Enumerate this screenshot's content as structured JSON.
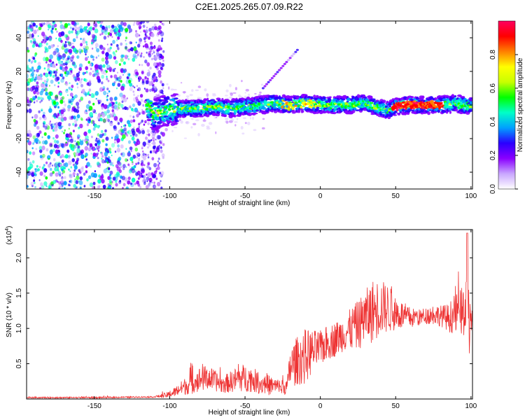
{
  "page": {
    "title": "C2E1.2025.265.07.09.R22"
  },
  "chart_data": [
    {
      "type": "heatmap",
      "title": "C2E1.2025.265.07.09.R22",
      "xlabel": "Height of straight line (km)",
      "ylabel": "Frequency (Hz)",
      "xlim": [
        -195,
        101
      ],
      "ylim": [
        -50,
        50
      ],
      "xticks": [
        -150,
        -100,
        -50,
        0,
        50,
        100
      ],
      "yticks": [
        -40,
        -20,
        0,
        20,
        40
      ],
      "colorbar": {
        "label": "Normalized spectral amplitude",
        "range": [
          0.0,
          1.0
        ],
        "ticks": [
          0.0,
          0.2,
          0.4,
          0.6,
          0.8
        ],
        "tick_labels": [
          "0.0",
          "0.2",
          "0.4",
          "0.6",
          "0.8"
        ],
        "colors": [
          "#ffffff",
          "#c9a6ff",
          "#8a00ff",
          "#2a00ff",
          "#00a0ff",
          "#00ffc8",
          "#00ff00",
          "#c8ff00",
          "#ffff00",
          "#ff8000",
          "#ff0000",
          "#ff0060"
        ]
      },
      "noise_region_km": [
        -195,
        -112
      ],
      "signal_center_hz": [
        {
          "x": -112,
          "y": -6
        },
        {
          "x": -105,
          "y": -4
        },
        {
          "x": -100,
          "y": -3
        },
        {
          "x": -90,
          "y": -2
        },
        {
          "x": -80,
          "y": -2
        },
        {
          "x": -70,
          "y": -1
        },
        {
          "x": -60,
          "y": -2
        },
        {
          "x": -50,
          "y": -1
        },
        {
          "x": -40,
          "y": 0
        },
        {
          "x": -30,
          "y": 1
        },
        {
          "x": -20,
          "y": 0
        },
        {
          "x": -10,
          "y": 1
        },
        {
          "x": 0,
          "y": 0
        },
        {
          "x": 10,
          "y": 0
        },
        {
          "x": 20,
          "y": 0
        },
        {
          "x": 30,
          "y": 1
        },
        {
          "x": 40,
          "y": -2
        },
        {
          "x": 45,
          "y": -3
        },
        {
          "x": 50,
          "y": -1
        },
        {
          "x": 60,
          "y": 0
        },
        {
          "x": 70,
          "y": 0
        },
        {
          "x": 80,
          "y": 0
        },
        {
          "x": 90,
          "y": 1
        },
        {
          "x": 100,
          "y": -1
        }
      ]
    },
    {
      "type": "line",
      "xlabel": "Height of straight line (km)",
      "ylabel": "SNR (10 * v/v)",
      "y_multiplier": "(x10",
      "y_multiplier_exp": "4",
      "y_multiplier_close": ")",
      "xlim": [
        -195,
        101
      ],
      "ylim": [
        0,
        2.4
      ],
      "xticks": [
        -150,
        -100,
        -50,
        0,
        50,
        100
      ],
      "yticks": [
        0.5,
        1.0,
        1.5,
        2.0
      ],
      "ytick_labels": [
        "0.5",
        "1.0",
        "1.5",
        "2.0"
      ],
      "color": "#ee3333",
      "series": [
        {
          "name": "SNR",
          "x": [
            -195,
            -150,
            -110,
            -100,
            -95,
            -90,
            -85,
            -80,
            -75,
            -70,
            -65,
            -60,
            -55,
            -50,
            -45,
            -40,
            -35,
            -30,
            -25,
            -22,
            -20,
            -15,
            -10,
            -5,
            0,
            5,
            10,
            15,
            20,
            25,
            30,
            35,
            40,
            45,
            50,
            55,
            60,
            65,
            70,
            75,
            80,
            85,
            90,
            95,
            98,
            101
          ],
          "y": [
            0.02,
            0.02,
            0.03,
            0.06,
            0.12,
            0.18,
            0.22,
            0.28,
            0.3,
            0.26,
            0.2,
            0.24,
            0.28,
            0.3,
            0.28,
            0.22,
            0.2,
            0.18,
            0.16,
            0.18,
            0.45,
            0.55,
            0.6,
            0.68,
            0.72,
            0.8,
            0.85,
            0.92,
            0.98,
            1.05,
            1.15,
            1.25,
            1.3,
            1.28,
            1.22,
            1.18,
            1.15,
            1.15,
            1.18,
            1.2,
            1.18,
            1.15,
            1.2,
            1.25,
            1.1,
            1.25
          ],
          "spread": [
            0.01,
            0.01,
            0.01,
            0.05,
            0.08,
            0.12,
            0.15,
            0.18,
            0.18,
            0.15,
            0.12,
            0.15,
            0.18,
            0.2,
            0.18,
            0.15,
            0.15,
            0.12,
            0.12,
            0.1,
            0.3,
            0.35,
            0.4,
            0.3,
            0.25,
            0.25,
            0.25,
            0.25,
            0.3,
            0.35,
            0.4,
            0.45,
            0.4,
            0.35,
            0.25,
            0.2,
            0.15,
            0.12,
            0.12,
            0.15,
            0.15,
            0.2,
            0.3,
            0.35,
            0.6,
            0.4
          ]
        }
      ]
    }
  ]
}
